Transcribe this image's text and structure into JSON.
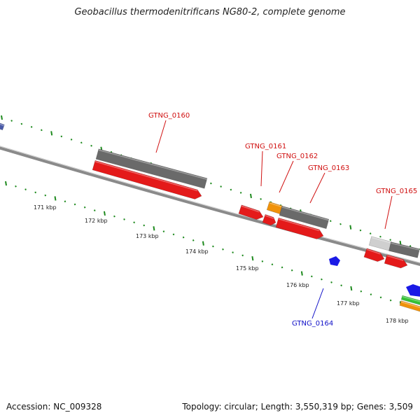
{
  "title": "Geobacillus thermodenitrificans NG80-2, complete genome",
  "footer": {
    "accession": "Accession: NC_009328",
    "summary": "Topology: circular; Length: 3,550,319 bp; Genes: 3,509"
  },
  "colors": {
    "backbone": "#8a8a8a",
    "tick": "#1e8a1e",
    "gene_red": "#e41a1a",
    "gene_gray": "#6a6a6a",
    "gene_lightgray": "#cfcfcf",
    "gene_orange": "#f0920a",
    "gene_blue": "#1a1ae6",
    "gene_green": "#36c236",
    "label_red": "#d01010",
    "label_blue": "#1010c8"
  },
  "scale_labels": [
    "171 kbp",
    "172 kbp",
    "173 kbp",
    "174 kbp",
    "175 kbp",
    "176 kbp",
    "177 kbp",
    "178 kbp"
  ],
  "genes": [
    {
      "label": "GTNG_0160",
      "label_color": "red"
    },
    {
      "label": "GTNG_0161",
      "label_color": "red"
    },
    {
      "label": "GTNG_0162",
      "label_color": "red"
    },
    {
      "label": "GTNG_0163",
      "label_color": "red"
    },
    {
      "label": "GTNG_0165",
      "label_color": "red"
    },
    {
      "label": "GTNG_0164",
      "label_color": "blue"
    }
  ]
}
